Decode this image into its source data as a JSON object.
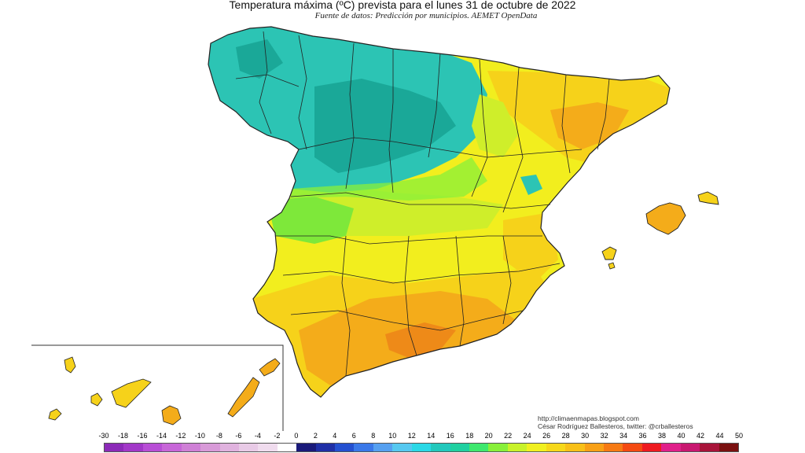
{
  "title": "Temperatura máxima (ºC) prevista para el lunes 31 de octubre de 2022",
  "subtitle": "Fuente de datos: Predicción por municipios. AEMET OpenData",
  "credits": {
    "line1": "http://climaenmapas.blogspot.com",
    "line2": "César Rodríguez Ballesteros, twitter: @crballesteros"
  },
  "legend": {
    "ticks": [
      "-30",
      "-18",
      "-16",
      "-14",
      "-12",
      "-10",
      "-8",
      "-6",
      "-4",
      "-2",
      "0",
      "2",
      "4",
      "6",
      "8",
      "10",
      "12",
      "14",
      "16",
      "18",
      "20",
      "22",
      "24",
      "26",
      "28",
      "30",
      "32",
      "34",
      "36",
      "38",
      "40",
      "42",
      "44",
      "50"
    ],
    "colors": [
      "#8c2ab8",
      "#a238c8",
      "#b84ed6",
      "#c766d8",
      "#cf80d6",
      "#d89ad8",
      "#e0b2de",
      "#e8cae6",
      "#f0dcee",
      "#ffffff",
      "#1a1a7a",
      "#1f2fa6",
      "#2450d0",
      "#3a78e8",
      "#56a0f0",
      "#56c8f0",
      "#2ad8e6",
      "#22c8bc",
      "#1fd0a0",
      "#3ee86e",
      "#88f03a",
      "#c8f22a",
      "#f0f020",
      "#f6d81a",
      "#f8c018",
      "#f8a016",
      "#f67a14",
      "#f44a12",
      "#ee1a20",
      "#e0208a",
      "#c81870",
      "#a8143a",
      "#7a1010"
    ]
  },
  "map_colors": {
    "cool_teal": "#2cc4b4",
    "teal_dark": "#1aa898",
    "green": "#7ee83a",
    "yellow_green": "#cfee2a",
    "yellow": "#f2ee1e",
    "yellow_orange": "#f6d21a",
    "orange": "#f4ac1a",
    "dark_orange": "#ee8a18",
    "border": "#222222"
  }
}
